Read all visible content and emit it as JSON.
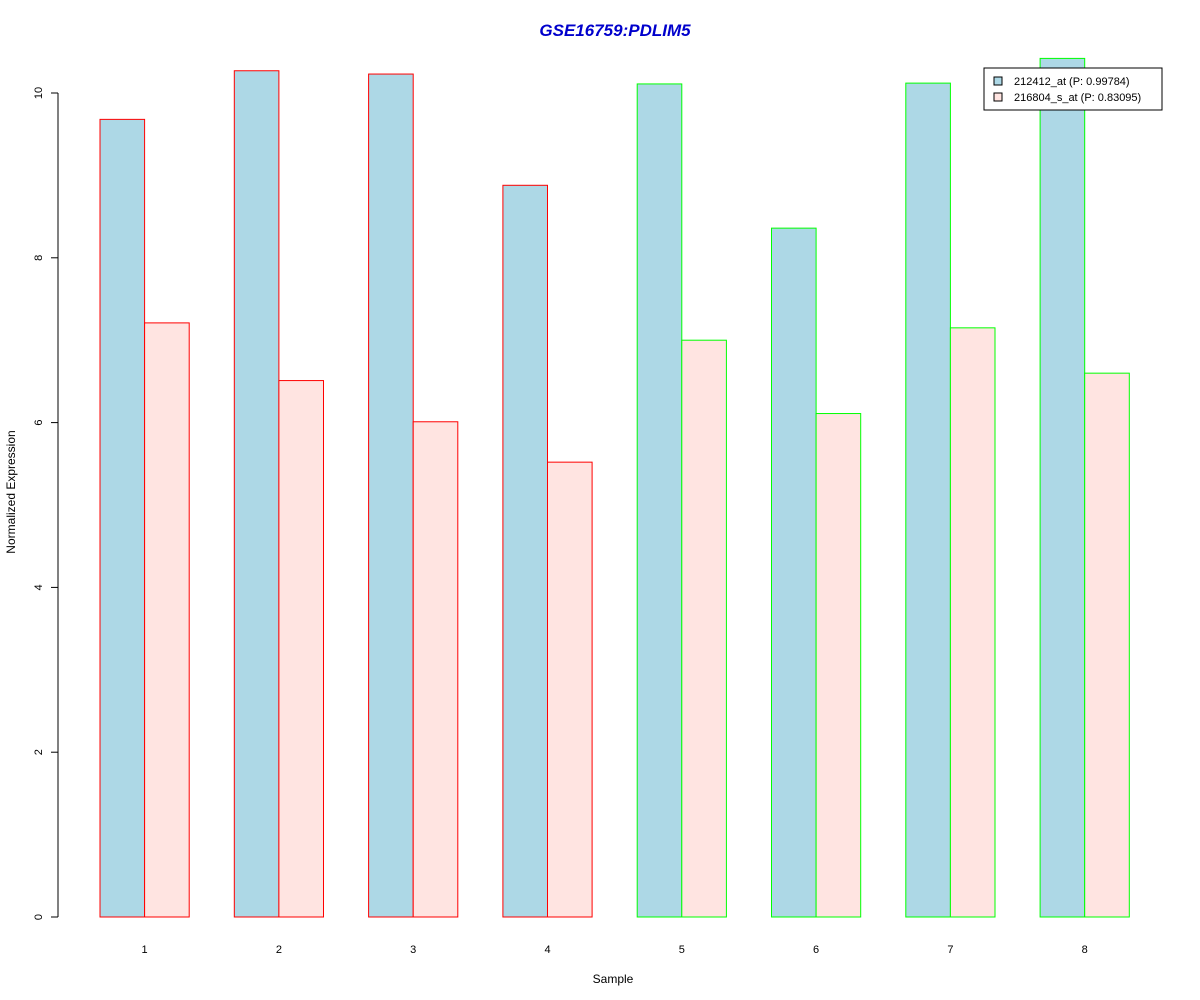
{
  "chart_data": {
    "type": "bar",
    "title": "GSE16759:PDLIM5",
    "xlabel": "Sample",
    "ylabel": "Normalized Expression",
    "categories": [
      "1",
      "2",
      "3",
      "4",
      "5",
      "6",
      "7",
      "8"
    ],
    "ylim": [
      0,
      10.4
    ],
    "yticks": [
      0,
      2,
      4,
      6,
      8,
      10
    ],
    "series": [
      {
        "name": "212412_at (P: 0.99784)",
        "fill": "#add8e6",
        "values": [
          9.68,
          10.27,
          10.23,
          8.88,
          10.11,
          8.36,
          10.12,
          10.42
        ]
      },
      {
        "name": "216804_s_at (P: 0.83095)",
        "fill": "#ffe4e1",
        "values": [
          7.21,
          6.51,
          6.01,
          5.52,
          7.0,
          6.11,
          7.15,
          6.6
        ]
      }
    ],
    "group_borders": [
      "#ff0000",
      "#ff0000",
      "#ff0000",
      "#ff0000",
      "#00ff00",
      "#00ff00",
      "#00ff00",
      "#00ff00"
    ],
    "title_color": "#0000cc",
    "legend_position": "top-right",
    "grid": false
  }
}
